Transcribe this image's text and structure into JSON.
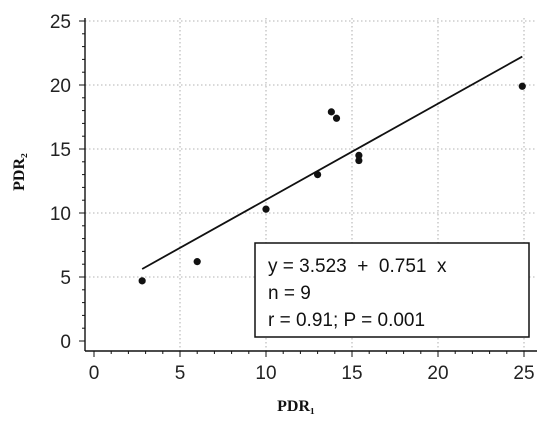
{
  "chart_data": {
    "type": "scatter",
    "xlabel": "PDR₁",
    "ylabel": "PDR₂",
    "xlim": [
      0,
      25
    ],
    "ylim": [
      0,
      25
    ],
    "xticks": [
      "0",
      "5",
      "10",
      "15",
      "20",
      "25"
    ],
    "yticks": [
      "0",
      "5",
      "10",
      "15",
      "20",
      "25"
    ],
    "grid": true,
    "points": [
      {
        "x": 2.8,
        "y": 4.7
      },
      {
        "x": 6.0,
        "y": 6.2
      },
      {
        "x": 10.0,
        "y": 10.3
      },
      {
        "x": 13.0,
        "y": 13.0
      },
      {
        "x": 13.8,
        "y": 17.9
      },
      {
        "x": 14.1,
        "y": 17.4
      },
      {
        "x": 15.4,
        "y": 14.5
      },
      {
        "x": 15.4,
        "y": 14.1
      },
      {
        "x": 24.9,
        "y": 19.9
      }
    ],
    "regression": {
      "intercept": 3.523,
      "slope": 0.751,
      "x_range": [
        2.8,
        24.9
      ]
    },
    "annotations": [
      "y = 3.523  +  0.751  x",
      "n = 9",
      "r = 0.91; P = 0.001"
    ]
  }
}
